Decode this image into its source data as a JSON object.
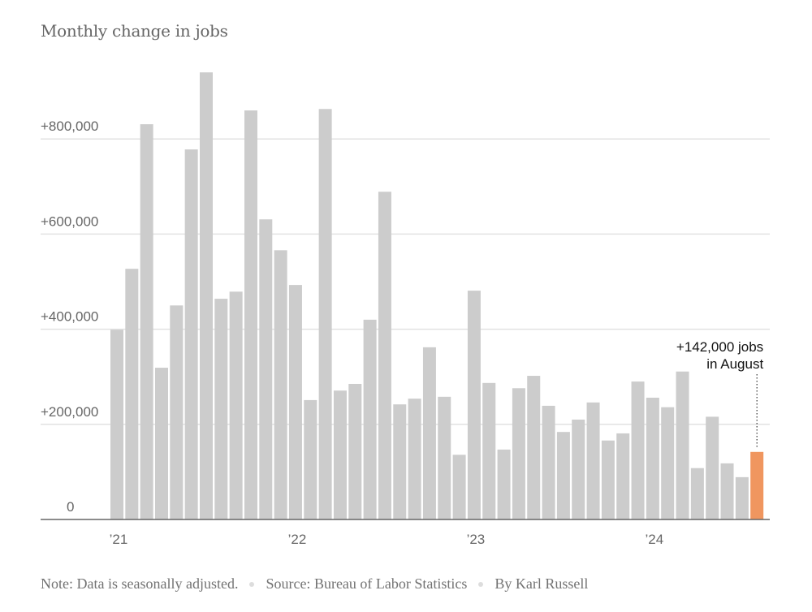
{
  "chart_data": {
    "type": "bar",
    "title": "Monthly change in jobs",
    "xlabel": "",
    "ylabel": "",
    "ylim": [
      0,
      950000
    ],
    "yticks": [
      {
        "value": 0,
        "label": "0"
      },
      {
        "value": 200000,
        "label": "+200,000"
      },
      {
        "value": 400000,
        "label": "+400,000"
      },
      {
        "value": 600000,
        "label": "+600,000"
      },
      {
        "value": 800000,
        "label": "+800,000"
      }
    ],
    "xticks": [
      {
        "index": 0,
        "label": "’21"
      },
      {
        "index": 12,
        "label": "’22"
      },
      {
        "index": 24,
        "label": "’23"
      },
      {
        "index": 36,
        "label": "’24"
      }
    ],
    "categories": [
      "2021-01",
      "2021-02",
      "2021-03",
      "2021-04",
      "2021-05",
      "2021-06",
      "2021-07",
      "2021-08",
      "2021-09",
      "2021-10",
      "2021-11",
      "2021-12",
      "2022-01",
      "2022-02",
      "2022-03",
      "2022-04",
      "2022-05",
      "2022-06",
      "2022-07",
      "2022-08",
      "2022-09",
      "2022-10",
      "2022-11",
      "2022-12",
      "2023-01",
      "2023-02",
      "2023-03",
      "2023-04",
      "2023-05",
      "2023-06",
      "2023-07",
      "2023-08",
      "2023-09",
      "2023-10",
      "2023-11",
      "2023-12",
      "2024-01",
      "2024-02",
      "2024-03",
      "2024-04",
      "2024-05",
      "2024-06",
      "2024-07",
      "2024-08"
    ],
    "values": [
      399000,
      527000,
      831000,
      319000,
      450000,
      778000,
      940000,
      464000,
      479000,
      860000,
      631000,
      566000,
      493000,
      251000,
      863000,
      271000,
      285000,
      420000,
      689000,
      242000,
      254000,
      362000,
      258000,
      136000,
      481000,
      287000,
      147000,
      276000,
      302000,
      239000,
      184000,
      210000,
      246000,
      166000,
      181000,
      290000,
      256000,
      236000,
      311000,
      108000,
      216000,
      118000,
      89000,
      142000
    ],
    "highlight_index": 43,
    "colors": {
      "bar": "#cccccc",
      "highlight": "#f0965f",
      "grid": "#e2e2e2",
      "axis": "#666666"
    },
    "grid": true,
    "legend": "none",
    "annotation": {
      "index": 43,
      "lines": [
        "+142,000 jobs",
        "in August"
      ]
    }
  },
  "footer": {
    "note": "Note: Data is seasonally adjusted.",
    "source": "Source: Bureau of Labor Statistics",
    "byline": "By Karl Russell"
  }
}
